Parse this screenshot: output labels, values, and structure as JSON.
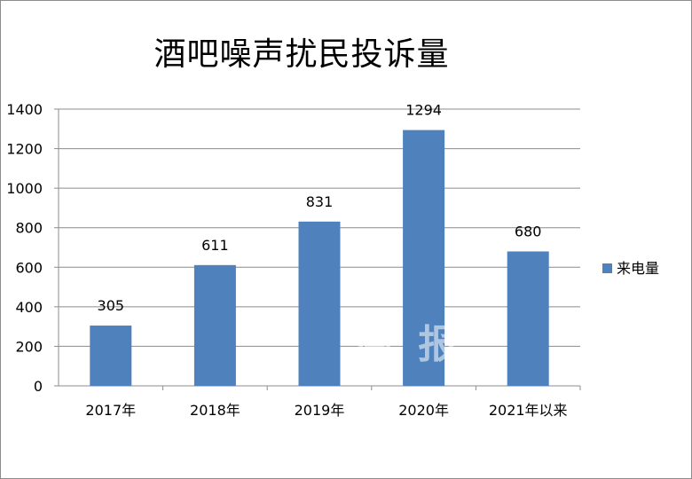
{
  "chart_data": {
    "type": "bar",
    "title": "酒吧噪声扰民投诉量",
    "categories": [
      "2017年",
      "2018年",
      "2019年",
      "2020年",
      "2021年以来"
    ],
    "series": [
      {
        "name": "来电量",
        "values": [
          305,
          611,
          831,
          1294,
          680
        ],
        "color": "#4F81BD"
      }
    ],
    "ylim": [
      0,
      1400
    ],
    "yticks": [
      0,
      200,
      400,
      600,
      800,
      1000,
      1200,
      1400
    ],
    "grid": true,
    "legend_position": "right"
  },
  "watermark": "南 报"
}
